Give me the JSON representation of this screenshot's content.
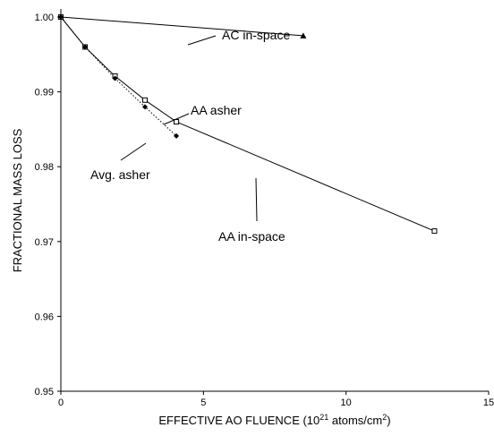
{
  "chart_data": {
    "type": "line",
    "xlabel": {
      "main": "EFFECTIVE AO FLUENCE (10",
      "sup_exp": "21",
      "unit": " atoms/cm",
      "sup_unit": "2",
      "close": ")"
    },
    "ylabel": "FRACTIONAL MASS LOSS",
    "xlim": [
      0,
      15
    ],
    "ylim": [
      0.95,
      1.005
    ],
    "xticks": [
      0,
      5,
      10,
      15
    ],
    "xtick_labels": [
      "0",
      "5",
      "10",
      "15"
    ],
    "yticks": [
      0.95,
      0.96,
      0.97,
      0.98,
      0.99,
      1.0
    ],
    "ytick_labels": [
      "0.95",
      "0.96",
      "0.97",
      "0.98",
      "0.99",
      "1.00"
    ],
    "grid": false,
    "legend": "none",
    "series": [
      {
        "name": "AC in-space",
        "marker": "triangle",
        "line": "solid",
        "points": [
          [
            0,
            1.0
          ],
          [
            8.5,
            0.9975
          ]
        ]
      },
      {
        "name": "AA asher",
        "marker": "open-square",
        "line": "solid",
        "points": [
          [
            0,
            1.0
          ],
          [
            0.85,
            0.996
          ],
          [
            1.9,
            0.9921
          ],
          [
            2.95,
            0.9889
          ],
          [
            4.05,
            0.986
          ]
        ]
      },
      {
        "name": "AA in-space",
        "marker": "open-square",
        "line": "solid",
        "points": [
          [
            4.05,
            0.986
          ],
          [
            13.1,
            0.9714
          ]
        ]
      },
      {
        "name": "Avg. asher",
        "marker": "diamond",
        "line": "dotted",
        "points": [
          [
            0,
            1.0
          ],
          [
            0.85,
            0.996
          ],
          [
            1.9,
            0.9918
          ],
          [
            2.95,
            0.988
          ],
          [
            4.05,
            0.9841
          ]
        ]
      }
    ],
    "annotations": [
      {
        "text": "AC in-space",
        "series": "AC in-space"
      },
      {
        "text": "AA asher",
        "series": "AA asher"
      },
      {
        "text": "Avg. asher",
        "series": "Avg. asher"
      },
      {
        "text": "AA in-space",
        "series": "AA in-space"
      }
    ]
  }
}
